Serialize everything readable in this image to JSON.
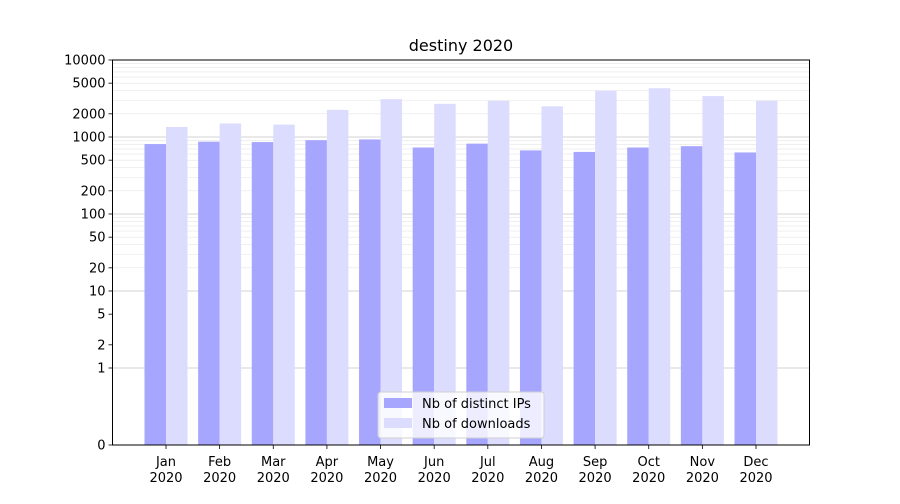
{
  "chart_data": {
    "type": "bar",
    "title": "destiny 2020",
    "xlabel": "",
    "ylabel": "",
    "y_scale": "symlog",
    "ylim": [
      0,
      10000
    ],
    "yticks": [
      0,
      1,
      2,
      5,
      10,
      20,
      50,
      100,
      200,
      500,
      1000,
      2000,
      5000,
      10000
    ],
    "ytick_labels": [
      "0",
      "1",
      "2",
      "5",
      "10",
      "20",
      "50",
      "100",
      "200",
      "500",
      "1000",
      "2000",
      "5000",
      "10000"
    ],
    "categories": [
      "Jan\n2020",
      "Feb\n2020",
      "Mar\n2020",
      "Apr\n2020",
      "May\n2020",
      "Jun\n2020",
      "Jul\n2020",
      "Aug\n2020",
      "Sep\n2020",
      "Oct\n2020",
      "Nov\n2020",
      "Dec\n2020"
    ],
    "series": [
      {
        "name": "Nb of distinct IPs",
        "color": "#a6a6ff",
        "values": [
          810,
          870,
          860,
          910,
          930,
          730,
          820,
          670,
          640,
          730,
          760,
          630
        ]
      },
      {
        "name": "Nb of downloads",
        "color": "#dcdcff",
        "values": [
          1350,
          1500,
          1450,
          2250,
          3100,
          2700,
          2950,
          2500,
          4000,
          4300,
          3400,
          2950
        ]
      }
    ],
    "grid": true,
    "legend_position": "lower center"
  }
}
